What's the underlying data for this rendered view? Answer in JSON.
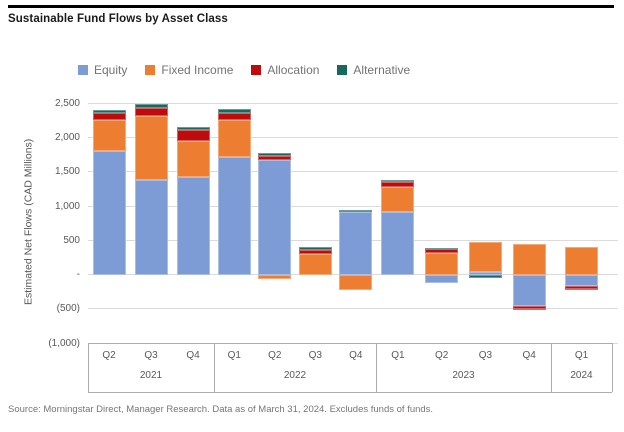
{
  "header": {
    "title": "Sustainable Fund Flows by Asset Class"
  },
  "legend": [
    {
      "label": "Equity",
      "field": "equity"
    },
    {
      "label": "Fixed Income",
      "field": "fixed_income"
    },
    {
      "label": "Allocation",
      "field": "allocation"
    },
    {
      "label": "Alternative",
      "field": "alternative"
    }
  ],
  "y_axis": {
    "label": "Estimated Net Flows (CAD Millions)",
    "ticks": [
      {
        "label": "2,500",
        "value": 2500
      },
      {
        "label": "2,000",
        "value": 2000
      },
      {
        "label": "1,500",
        "value": 1500
      },
      {
        "label": "1,000",
        "value": 1000
      },
      {
        "label": "500",
        "value": 500
      },
      {
        "label": "-",
        "value": 0
      },
      {
        "label": "(500)",
        "value": -500
      },
      {
        "label": "(1,000)",
        "value": -1000
      }
    ]
  },
  "source": "Source: Morningstar Direct, Manager Research. Data as of March 31, 2024. Excludes funds of funds.",
  "chart_data": {
    "type": "bar",
    "stacked": true,
    "title": "Sustainable Fund Flows by Asset Class",
    "ylabel": "Estimated Net Flows (CAD Millions)",
    "unit": "CAD Millions",
    "ylim": [
      -1000,
      2500
    ],
    "grid": true,
    "legend_position": "top",
    "series_names": [
      "Equity",
      "Fixed Income",
      "Allocation",
      "Alternative"
    ],
    "series_order": [
      "equity",
      "fixed_income",
      "allocation",
      "alternative"
    ],
    "colors": {
      "equity": "#7D9CD5",
      "fixed_income": "#ED7D31",
      "allocation": "#BE0B0B",
      "alternative": "#17685D"
    },
    "groups": [
      {
        "year": "2021",
        "quarters": [
          "Q2",
          "Q3",
          "Q4"
        ]
      },
      {
        "year": "2022",
        "quarters": [
          "Q1",
          "Q2",
          "Q3",
          "Q4"
        ]
      },
      {
        "year": "2023",
        "quarters": [
          "Q1",
          "Q2",
          "Q3",
          "Q4"
        ]
      },
      {
        "year": "2024",
        "quarters": [
          "Q1"
        ]
      }
    ],
    "points": [
      {
        "year": "2021",
        "quarter": "Q2",
        "equity": 1800,
        "fixed_income": 460,
        "allocation": 95,
        "alternative": 55
      },
      {
        "year": "2021",
        "quarter": "Q3",
        "equity": 1380,
        "fixed_income": 930,
        "allocation": 130,
        "alternative": 55
      },
      {
        "year": "2021",
        "quarter": "Q4",
        "equity": 1420,
        "fixed_income": 530,
        "allocation": 155,
        "alternative": 50
      },
      {
        "year": "2022",
        "quarter": "Q1",
        "equity": 1710,
        "fixed_income": 545,
        "allocation": 110,
        "alternative": 60
      },
      {
        "year": "2022",
        "quarter": "Q2",
        "equity": 1680,
        "fixed_income": -70,
        "allocation": 45,
        "alternative": 45
      },
      {
        "year": "2022",
        "quarter": "Q3",
        "equity": 0,
        "fixed_income": 300,
        "allocation": 65,
        "alternative": 40
      },
      {
        "year": "2022",
        "quarter": "Q4",
        "equity": 915,
        "fixed_income": -220,
        "allocation": 20,
        "alternative": 10
      },
      {
        "year": "2023",
        "quarter": "Q1",
        "equity": 915,
        "fixed_income": 360,
        "allocation": 75,
        "alternative": 25
      },
      {
        "year": "2023",
        "quarter": "Q2",
        "equity": -120,
        "fixed_income": 320,
        "allocation": 60,
        "alternative": 15
      },
      {
        "year": "2023",
        "quarter": "Q3",
        "equity": 30,
        "fixed_income": 450,
        "allocation": 0,
        "alternative": -55
      },
      {
        "year": "2023",
        "quarter": "Q4",
        "equity": -455,
        "fixed_income": 450,
        "allocation": -50,
        "alternative": -20
      },
      {
        "year": "2024",
        "quarter": "Q1",
        "equity": -165,
        "fixed_income": 400,
        "allocation": -40,
        "alternative": -15
      }
    ]
  }
}
